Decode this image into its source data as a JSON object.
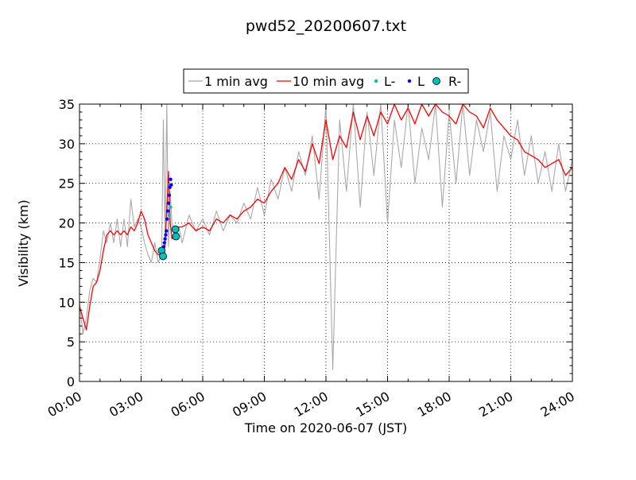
{
  "chart_data": {
    "type": "line",
    "title": "pwd52_20200607.txt",
    "xlabel": "Time on 2020-06-07 (JST)",
    "ylabel": "Visibility (km)",
    "xlim": [
      "2020-06-07T00:00",
      "2020-06-08T00:00"
    ],
    "ylim": [
      0,
      35
    ],
    "grid": true,
    "legend_position": "top-center",
    "x_ticks": [
      "00:00",
      "03:00",
      "06:00",
      "09:00",
      "12:00",
      "15:00",
      "18:00",
      "21:00",
      "24:00"
    ],
    "y_ticks": [
      "0",
      "5",
      "10",
      "15",
      "20",
      "25",
      "30",
      "35"
    ],
    "series": [
      {
        "name": "1 min avg",
        "style": "line",
        "color": "#a9a9a9",
        "x": [
          "00:00",
          "00:10",
          "00:20",
          "00:30",
          "00:40",
          "00:50",
          "01:00",
          "01:10",
          "01:20",
          "01:30",
          "01:40",
          "01:50",
          "02:00",
          "02:10",
          "02:20",
          "02:30",
          "02:40",
          "02:50",
          "03:00",
          "03:10",
          "03:20",
          "03:30",
          "03:40",
          "03:50",
          "04:00",
          "04:05",
          "04:10",
          "04:15",
          "04:20",
          "04:25",
          "04:30",
          "04:40",
          "04:50",
          "05:00",
          "05:20",
          "05:40",
          "06:00",
          "06:20",
          "06:40",
          "07:00",
          "07:20",
          "07:40",
          "08:00",
          "08:20",
          "08:40",
          "09:00",
          "09:20",
          "09:40",
          "10:00",
          "10:20",
          "10:40",
          "11:00",
          "11:20",
          "11:40",
          "12:00",
          "12:20",
          "12:40",
          "13:00",
          "13:20",
          "13:40",
          "14:00",
          "14:20",
          "14:40",
          "15:00",
          "15:20",
          "15:40",
          "16:00",
          "16:20",
          "16:40",
          "17:00",
          "17:20",
          "17:40",
          "18:00",
          "18:20",
          "18:40",
          "19:00",
          "19:20",
          "19:40",
          "20:00",
          "20:20",
          "20:40",
          "21:00",
          "21:20",
          "21:40",
          "22:00",
          "22:20",
          "22:40",
          "23:00",
          "23:20",
          "23:40",
          "24:00"
        ],
        "y": [
          10.0,
          6.0,
          8.0,
          11.5,
          13.0,
          12.5,
          15.5,
          19.0,
          17.5,
          20.0,
          17.5,
          20.5,
          17.0,
          20.5,
          17.0,
          23.0,
          19.5,
          20.5,
          19.5,
          17.5,
          16.0,
          15.0,
          17.5,
          15.0,
          16.0,
          33.0,
          18.0,
          35.0,
          17.0,
          24.0,
          20.0,
          18.0,
          19.5,
          17.5,
          21.0,
          19.0,
          20.5,
          18.5,
          21.5,
          19.0,
          21.0,
          20.0,
          22.5,
          20.5,
          24.5,
          21.0,
          25.5,
          23.0,
          27.0,
          24.0,
          29.0,
          26.0,
          31.0,
          23.0,
          35.0,
          1.5,
          33.0,
          24.0,
          35.0,
          22.0,
          34.0,
          26.0,
          35.0,
          20.0,
          33.0,
          27.0,
          35.0,
          25.0,
          32.0,
          28.0,
          35.0,
          22.0,
          34.0,
          25.0,
          35.0,
          26.0,
          33.0,
          29.0,
          34.0,
          24.0,
          31.0,
          28.0,
          33.0,
          26.0,
          31.0,
          25.0,
          29.0,
          24.0,
          30.0,
          24.0,
          28.0
        ]
      },
      {
        "name": "10 min avg",
        "style": "line",
        "color": "#ff0000",
        "x": [
          "00:00",
          "00:10",
          "00:20",
          "00:30",
          "00:40",
          "00:50",
          "01:00",
          "01:10",
          "01:20",
          "01:30",
          "01:40",
          "01:50",
          "02:00",
          "02:10",
          "02:20",
          "02:30",
          "02:40",
          "02:50",
          "03:00",
          "03:10",
          "03:20",
          "03:30",
          "03:40",
          "03:50",
          "04:00",
          "04:10",
          "04:20",
          "04:25",
          "04:30",
          "04:40",
          "04:50",
          "05:00",
          "05:20",
          "05:40",
          "06:00",
          "06:20",
          "06:40",
          "07:00",
          "07:20",
          "07:40",
          "08:00",
          "08:20",
          "08:40",
          "09:00",
          "09:20",
          "09:40",
          "10:00",
          "10:20",
          "10:40",
          "11:00",
          "11:20",
          "11:40",
          "12:00",
          "12:20",
          "12:40",
          "13:00",
          "13:20",
          "13:40",
          "14:00",
          "14:20",
          "14:40",
          "15:00",
          "15:20",
          "15:40",
          "16:00",
          "16:20",
          "16:40",
          "17:00",
          "17:20",
          "17:40",
          "18:00",
          "18:20",
          "18:40",
          "19:00",
          "19:20",
          "19:40",
          "20:00",
          "20:20",
          "20:40",
          "21:00",
          "21:20",
          "21:40",
          "22:00",
          "22:20",
          "22:40",
          "23:00",
          "23:20",
          "23:40",
          "24:00"
        ],
        "y": [
          9.5,
          8.0,
          6.5,
          9.5,
          12.0,
          12.5,
          14.0,
          16.5,
          18.5,
          19.0,
          18.5,
          19.0,
          18.5,
          19.0,
          18.5,
          19.5,
          19.0,
          20.0,
          21.5,
          20.5,
          18.5,
          17.5,
          16.5,
          16.0,
          16.0,
          17.0,
          26.5,
          20.0,
          18.0,
          19.0,
          19.5,
          19.5,
          20.0,
          19.0,
          19.5,
          19.0,
          20.5,
          20.0,
          21.0,
          20.5,
          21.5,
          22.0,
          23.0,
          22.5,
          24.0,
          25.0,
          27.0,
          25.5,
          28.0,
          26.5,
          30.0,
          27.5,
          33.0,
          28.0,
          31.0,
          29.5,
          34.0,
          30.5,
          33.5,
          31.0,
          34.0,
          32.5,
          35.0,
          33.0,
          34.5,
          32.5,
          35.0,
          33.5,
          35.0,
          34.0,
          33.5,
          32.5,
          35.0,
          34.0,
          33.5,
          32.0,
          34.5,
          33.0,
          32.0,
          31.0,
          30.5,
          29.0,
          28.5,
          28.0,
          27.0,
          27.5,
          28.0,
          26.0,
          27.0
        ]
      },
      {
        "name": "L-",
        "style": "marker",
        "color": "#00bfbf",
        "x": [
          "04:22",
          "04:24",
          "04:26"
        ],
        "y": [
          21.0,
          24.8,
          22.0
        ]
      },
      {
        "name": "L",
        "style": "marker",
        "color": "#0000ff",
        "x": [
          "04:02",
          "04:04",
          "04:06",
          "04:08",
          "04:10",
          "04:12",
          "04:14",
          "04:16",
          "04:18",
          "04:20",
          "04:22",
          "04:24",
          "04:26",
          "04:28"
        ],
        "y": [
          16.0,
          16.5,
          17.0,
          17.5,
          18.0,
          18.5,
          19.0,
          20.5,
          21.5,
          22.5,
          23.5,
          24.5,
          25.5,
          24.8
        ]
      },
      {
        "name": "R-",
        "style": "marker-large",
        "color": "#00bfbf",
        "x": [
          "04:00",
          "04:04",
          "04:40",
          "04:42"
        ],
        "y": [
          16.5,
          15.8,
          19.2,
          18.3
        ]
      }
    ]
  }
}
